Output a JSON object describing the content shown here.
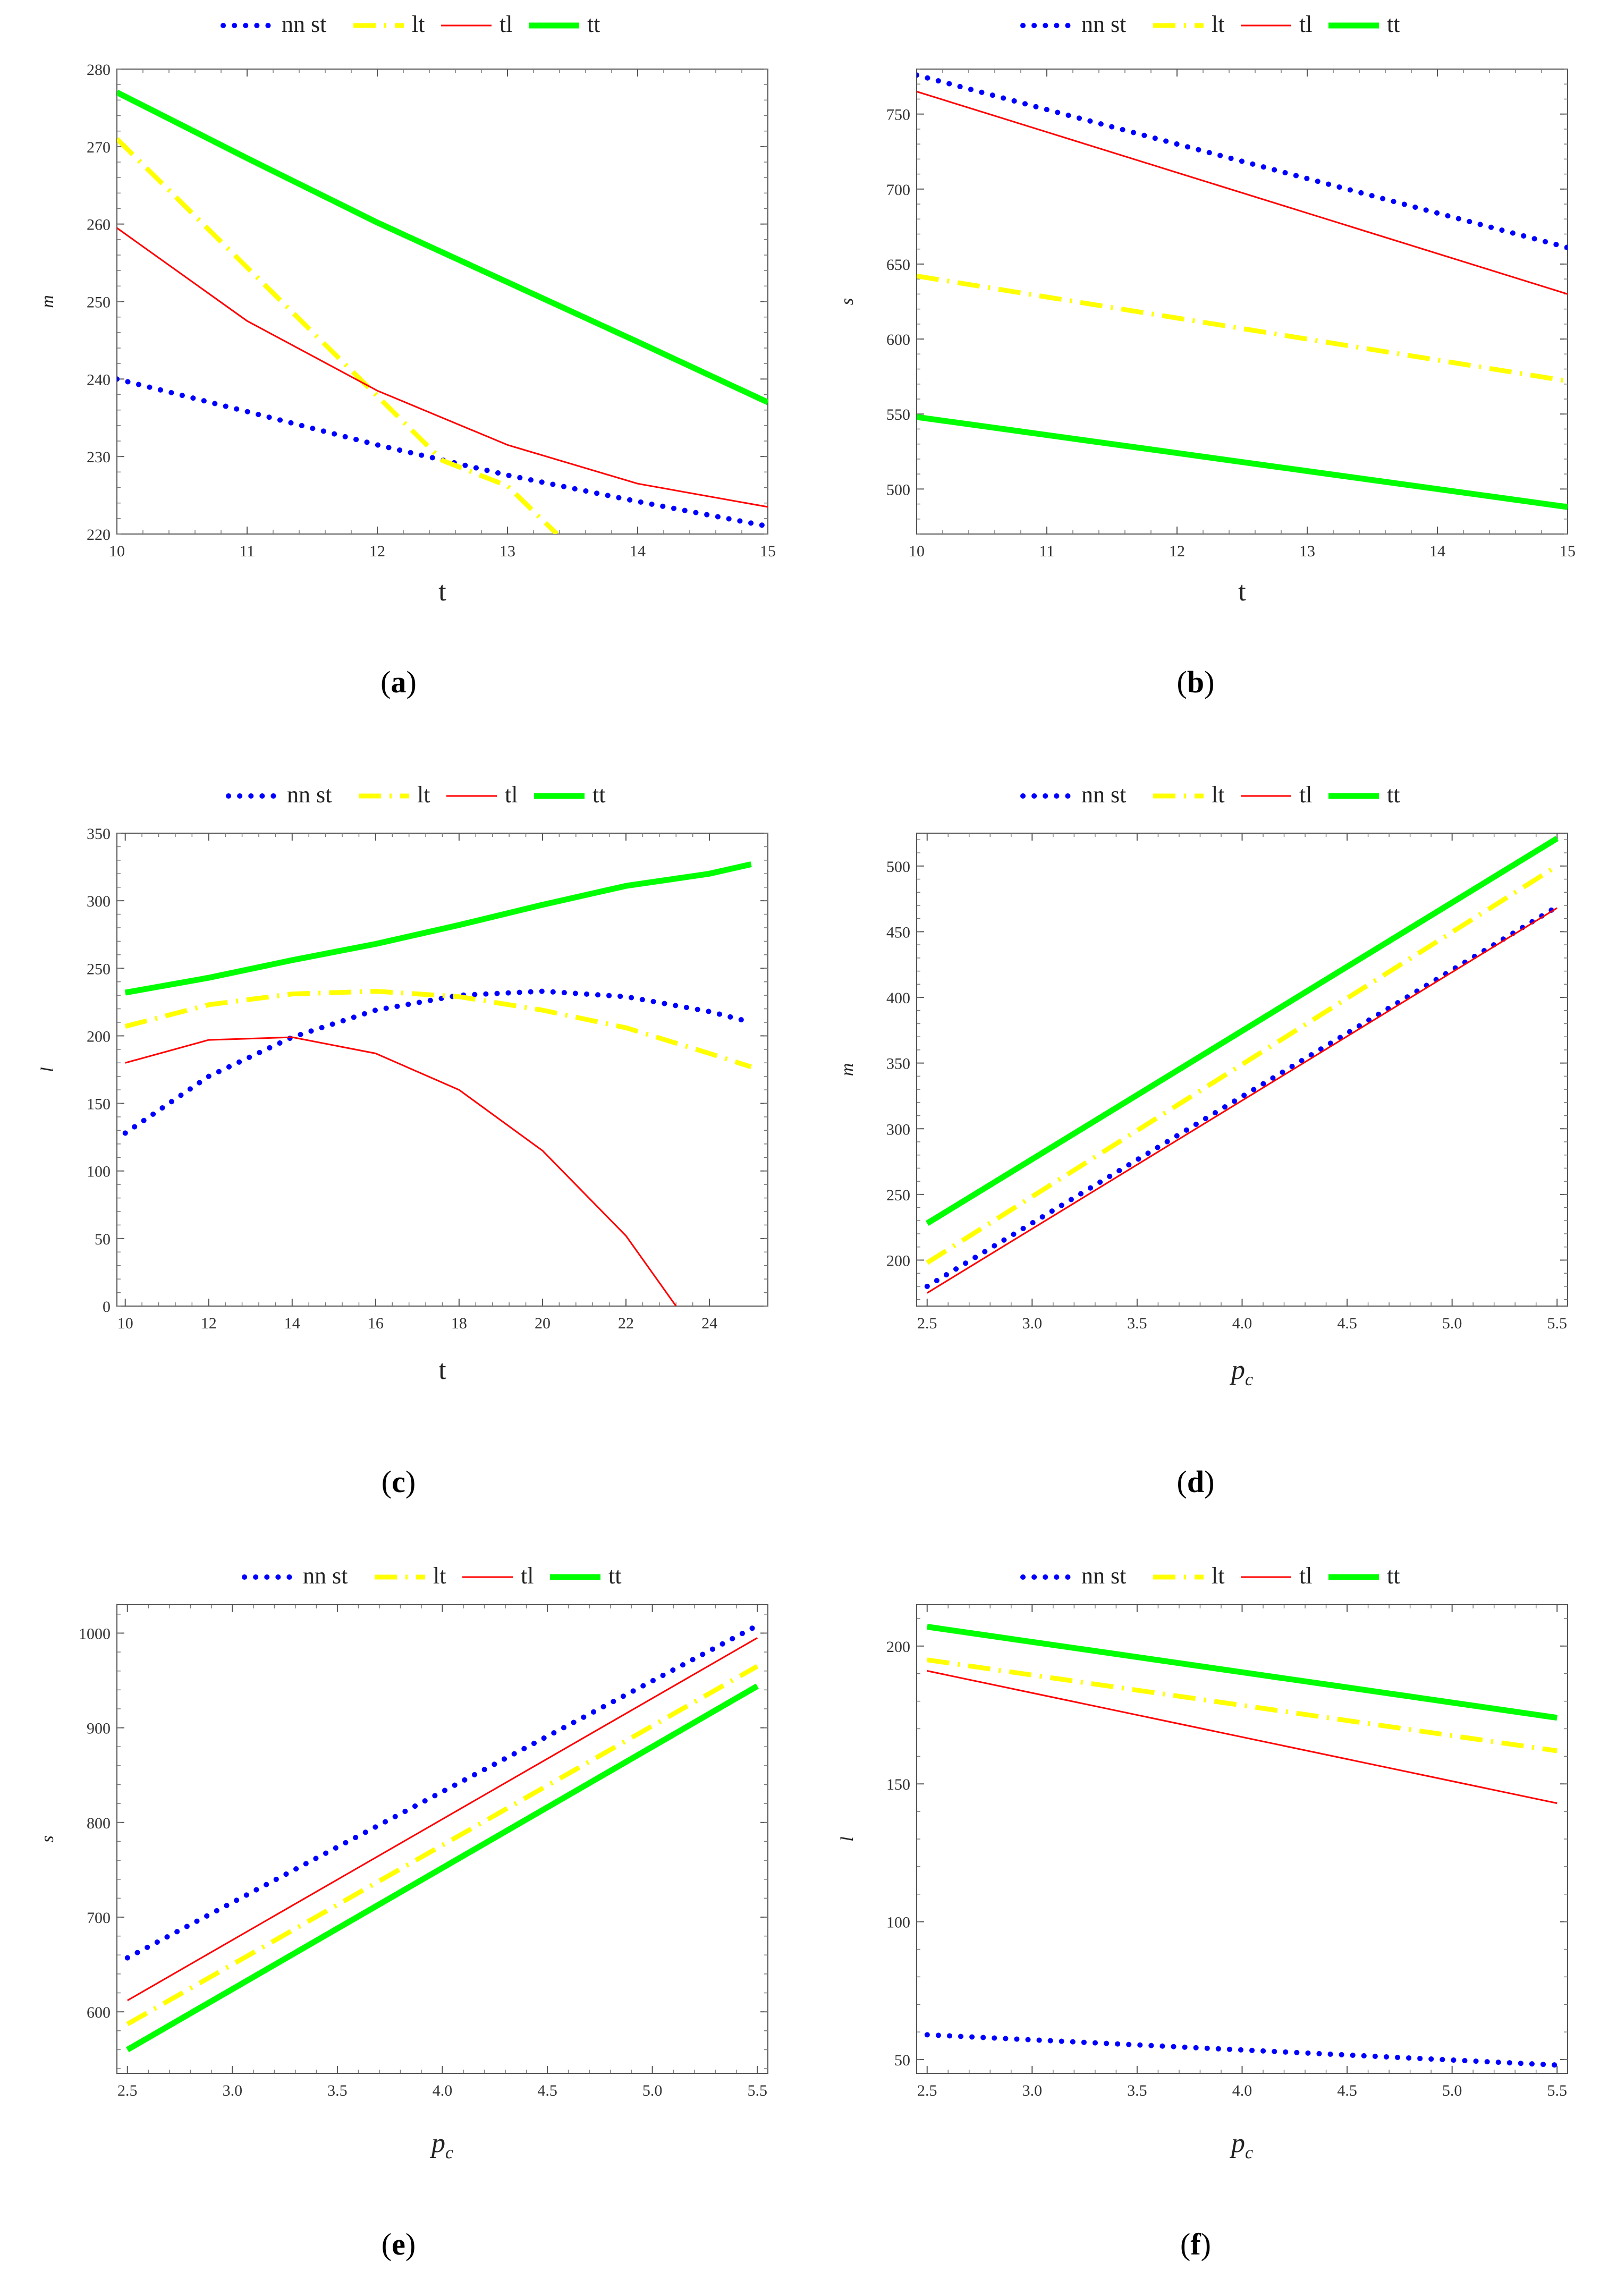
{
  "chart_data": [
    {
      "panel": "a",
      "type": "line",
      "xlabel": "t",
      "ylabel": "m",
      "xlim": [
        10,
        15
      ],
      "ylim": [
        220,
        280
      ],
      "xticks": [
        "10",
        "11",
        "12",
        "13",
        "14",
        "15"
      ],
      "yticks": [
        "220",
        "230",
        "240",
        "250",
        "260",
        "270",
        "280"
      ],
      "series": [
        {
          "name": "nn st",
          "x": [
            10,
            11,
            12,
            13,
            14,
            15
          ],
          "y": [
            240,
            235.8,
            231.5,
            227.6,
            224.2,
            221
          ]
        },
        {
          "name": "lt",
          "x": [
            10,
            10.5,
            11,
            11.5,
            12,
            12.5,
            13,
            13.38
          ],
          "y": [
            271,
            262.7,
            254.4,
            246.1,
            237.8,
            229.5,
            226.2,
            220
          ]
        },
        {
          "name": "tl",
          "x": [
            10,
            11,
            12,
            13,
            14,
            15
          ],
          "y": [
            259.5,
            247.5,
            238.5,
            231.5,
            226.5,
            223.5
          ]
        },
        {
          "name": "tt",
          "x": [
            10,
            11,
            12,
            13,
            14,
            15
          ],
          "y": [
            277,
            268.5,
            260.2,
            252.5,
            244.8,
            237
          ]
        }
      ]
    },
    {
      "panel": "b",
      "type": "line",
      "xlabel": "t",
      "ylabel": "s",
      "xlim": [
        10,
        15
      ],
      "ylim": [
        470,
        780
      ],
      "xticks": [
        "10",
        "11",
        "12",
        "13",
        "14",
        "15"
      ],
      "yticks": [
        "500",
        "550",
        "600",
        "650",
        "700",
        "750"
      ],
      "series": [
        {
          "name": "nn st",
          "x": [
            10,
            11,
            12,
            13,
            14,
            15
          ],
          "y": [
            776,
            753,
            730,
            707,
            684,
            661
          ]
        },
        {
          "name": "lt",
          "x": [
            10,
            11,
            12,
            13,
            14,
            15
          ],
          "y": [
            642,
            628,
            614,
            600,
            586,
            572
          ]
        },
        {
          "name": "tl",
          "x": [
            10,
            11,
            12,
            13,
            14,
            15
          ],
          "y": [
            765,
            738,
            711,
            684,
            657,
            630
          ]
        },
        {
          "name": "tt",
          "x": [
            10,
            11,
            12,
            13,
            14,
            15
          ],
          "y": [
            548,
            536,
            524,
            512,
            500,
            488
          ]
        }
      ]
    },
    {
      "panel": "c",
      "type": "line",
      "xlabel": "t",
      "ylabel": "l",
      "xlim": [
        9.8,
        25.4
      ],
      "ylim": [
        0,
        350
      ],
      "xticks": [
        "10",
        "12",
        "14",
        "16",
        "18",
        "20",
        "22",
        "24"
      ],
      "yticks": [
        "0",
        "50",
        "100",
        "150",
        "200",
        "250",
        "300",
        "350"
      ],
      "series": [
        {
          "name": "nn st",
          "x": [
            10,
            12,
            14,
            16,
            18,
            20,
            22,
            24,
            25
          ],
          "y": [
            128,
            170,
            199,
            219,
            230,
            233,
            229,
            218,
            210
          ]
        },
        {
          "name": "lt",
          "x": [
            10,
            12,
            14,
            16,
            18,
            20,
            22,
            24,
            25
          ],
          "y": [
            207,
            223,
            231,
            233,
            229,
            219,
            206,
            187,
            177
          ]
        },
        {
          "name": "tl",
          "x": [
            10,
            12,
            14,
            16,
            18,
            20,
            22,
            23.2
          ],
          "y": [
            180,
            197,
            199,
            187,
            160,
            115,
            52,
            0
          ]
        },
        {
          "name": "tt",
          "x": [
            10,
            12,
            14,
            16,
            18,
            20,
            22,
            24,
            25
          ],
          "y": [
            232,
            243,
            256,
            268,
            282,
            297,
            311,
            320,
            327
          ]
        }
      ]
    },
    {
      "panel": "d",
      "type": "line",
      "xlabel": "p_c",
      "ylabel": "m",
      "xlim": [
        2.45,
        5.55
      ],
      "ylim": [
        165,
        525
      ],
      "xticks": [
        "2.5",
        "3.0",
        "3.5",
        "4.0",
        "4.5",
        "5.0",
        "5.5"
      ],
      "yticks": [
        "200",
        "250",
        "300",
        "350",
        "400",
        "450",
        "500"
      ],
      "series": [
        {
          "name": "nn st",
          "x": [
            2.5,
            5.5
          ],
          "y": [
            180,
            469
          ]
        },
        {
          "name": "lt",
          "x": [
            2.5,
            5.5
          ],
          "y": [
            198,
            500
          ]
        },
        {
          "name": "tl",
          "x": [
            2.5,
            5.5
          ],
          "y": [
            175,
            468
          ]
        },
        {
          "name": "tt",
          "x": [
            2.5,
            5.5
          ],
          "y": [
            228,
            521
          ]
        }
      ]
    },
    {
      "panel": "e",
      "type": "line",
      "xlabel": "p_c",
      "ylabel": "s",
      "xlim": [
        2.45,
        5.55
      ],
      "ylim": [
        535,
        1030
      ],
      "xticks": [
        "2.5",
        "3.0",
        "3.5",
        "4.0",
        "4.5",
        "5.0",
        "5.5"
      ],
      "yticks": [
        "600",
        "700",
        "800",
        "900",
        "1000"
      ],
      "series": [
        {
          "name": "nn st",
          "x": [
            2.5,
            5.5
          ],
          "y": [
            657,
            1008
          ]
        },
        {
          "name": "lt",
          "x": [
            2.5,
            5.5
          ],
          "y": [
            587,
            965
          ]
        },
        {
          "name": "tl",
          "x": [
            2.5,
            5.5
          ],
          "y": [
            612,
            995
          ]
        },
        {
          "name": "tt",
          "x": [
            2.5,
            5.5
          ],
          "y": [
            560,
            944
          ]
        }
      ]
    },
    {
      "panel": "f",
      "type": "line",
      "xlabel": "p_c",
      "ylabel": "l",
      "xlim": [
        2.45,
        5.55
      ],
      "ylim": [
        45,
        215
      ],
      "xticks": [
        "2.5",
        "3.0",
        "3.5",
        "4.0",
        "4.5",
        "5.0",
        "5.5"
      ],
      "yticks": [
        "50",
        "100",
        "150",
        "200"
      ],
      "series": [
        {
          "name": "nn st",
          "x": [
            2.5,
            5.5
          ],
          "y": [
            59,
            48
          ]
        },
        {
          "name": "lt",
          "x": [
            2.5,
            5.5
          ],
          "y": [
            195,
            162
          ]
        },
        {
          "name": "tl",
          "x": [
            2.5,
            5.5
          ],
          "y": [
            191,
            143
          ]
        },
        {
          "name": "tt",
          "x": [
            2.5,
            5.5
          ],
          "y": [
            207,
            174
          ]
        }
      ]
    }
  ],
  "legend": {
    "items": [
      {
        "name": "nn st",
        "color": "#0000ff",
        "style": "dotted"
      },
      {
        "name": "lt",
        "color": "#ffff00",
        "style": "dashdot"
      },
      {
        "name": "tl",
        "color": "#ff0000",
        "style": "thin"
      },
      {
        "name": "tt",
        "color": "#00ff00",
        "style": "thick"
      }
    ]
  },
  "captions": [
    "a",
    "b",
    "c",
    "d",
    "e",
    "f"
  ]
}
